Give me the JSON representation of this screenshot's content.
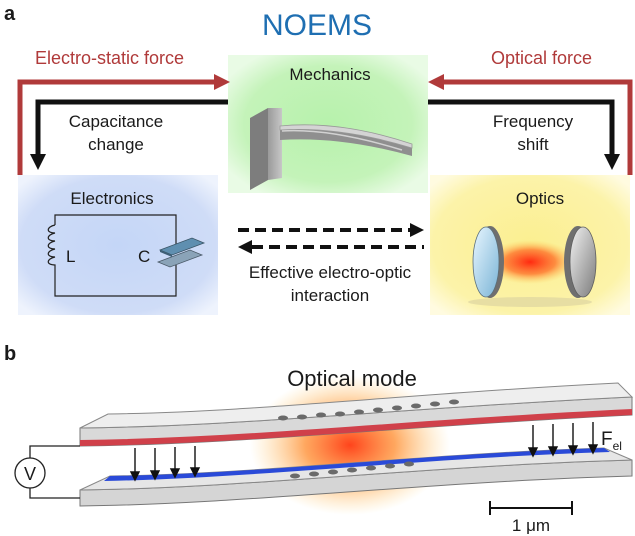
{
  "panel_a": {
    "letter": "a",
    "title": "NOEMS",
    "left_force": "Electro-static force",
    "right_force": "Optical force",
    "mechanics_label": "Mechanics",
    "electronics_label": "Electronics",
    "optics_label": "Optics",
    "left_arrow_text": {
      "line1": "Capacitance",
      "line2": "change"
    },
    "right_arrow_text": {
      "line1": "Frequency",
      "line2": "shift"
    },
    "inductor_label": "L",
    "capacitor_label": "C",
    "interaction_text": {
      "line1": "Effective electro-optic",
      "line2": "interaction"
    },
    "colors": {
      "title": "#1f6fb2",
      "force_arrow": "#b03a3a",
      "mechanics_box": "#b9f0b0",
      "electronics_box": "#c8d8f6",
      "optics_box": "#fbf09a"
    }
  },
  "panel_b": {
    "letter": "b",
    "optical_mode_label": "Optical mode",
    "voltage_label": "V",
    "force_label_main": "F",
    "force_label_sub": "el",
    "scale_bar_label": "1 μm",
    "colors": {
      "top_beam_edge": "#d0404a",
      "bottom_beam_edge": "#2a4ad8",
      "mode_glow": "#ff6a1a"
    }
  }
}
